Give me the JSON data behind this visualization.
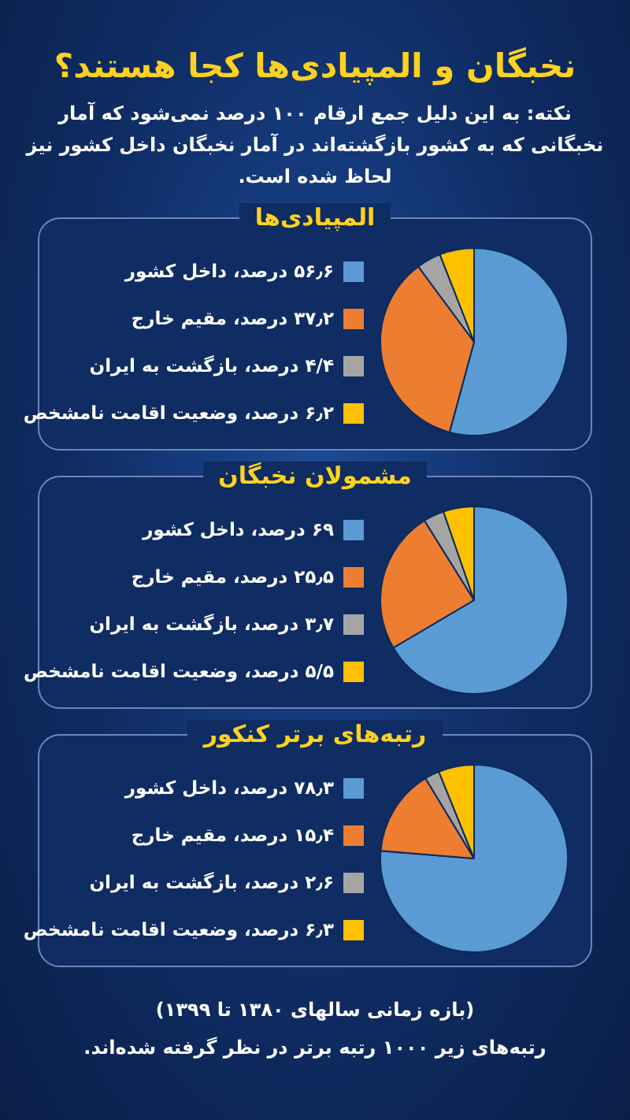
{
  "chart_data": [
    {
      "type": "other",
      "title": "نخبگان و المپیادی‌ها کجا هستند؟",
      "subtitle": "نکته: به این دلیل جمع ارقام ۱۰۰ درصد نمی‌شود که آمار نخبگانی که به کشور بازگشته‌اند در آمار نخبگان داخل کشور نیز لحاظ شده است."
    },
    {
      "type": "pie",
      "title": "المپیادی‌ها",
      "legend": "left",
      "categories": [
        "۵۶٫۶ درصد، داخل کشور",
        "۳۷٫۲ درصد، مقیم خارج",
        "۴/۴ درصد، بازگشت به ایران",
        "۶٫۲ درصد، وضعیت اقامت نامشخص"
      ],
      "values": [
        56.6,
        37.2,
        4.4,
        6.2
      ],
      "colors": [
        "#5b9bd5",
        "#ed7d31",
        "#a5a5a5",
        "#ffc000"
      ]
    },
    {
      "type": "pie",
      "title": "مشمولان نخبگان",
      "legend": "left",
      "categories": [
        "۶۹ درصد، داخل کشور",
        "۲۵٫۵ درصد، مقیم خارج",
        "۳٫۷ درصد، بازگشت به ایران",
        "۵/۵ درصد، وضعیت اقامت نامشخص"
      ],
      "values": [
        69,
        25.5,
        3.7,
        5.5
      ],
      "colors": [
        "#5b9bd5",
        "#ed7d31",
        "#a5a5a5",
        "#ffc000"
      ]
    },
    {
      "type": "pie",
      "title": "رتبه‌های برتر کنکور",
      "legend": "left",
      "categories": [
        "۷۸٫۳ درصد، داخل کشور",
        "۱۵٫۴ درصد، مقیم خارج",
        "۲٫۶ درصد، بازگشت به ایران",
        "۶٫۳ درصد، وضعیت اقامت نامشخص"
      ],
      "values": [
        78.3,
        15.4,
        2.6,
        6.3
      ],
      "colors": [
        "#5b9bd5",
        "#ed7d31",
        "#a5a5a5",
        "#ffc000"
      ]
    },
    {
      "type": "other",
      "annotations": [
        "(بازه زمانی سالهای ۱۳۸۰ تا ۱۳۹۹)",
        "رتبه‌های زیر ۱۰۰۰ رتبه برتر در نظر گرفته شده‌اند."
      ]
    }
  ]
}
